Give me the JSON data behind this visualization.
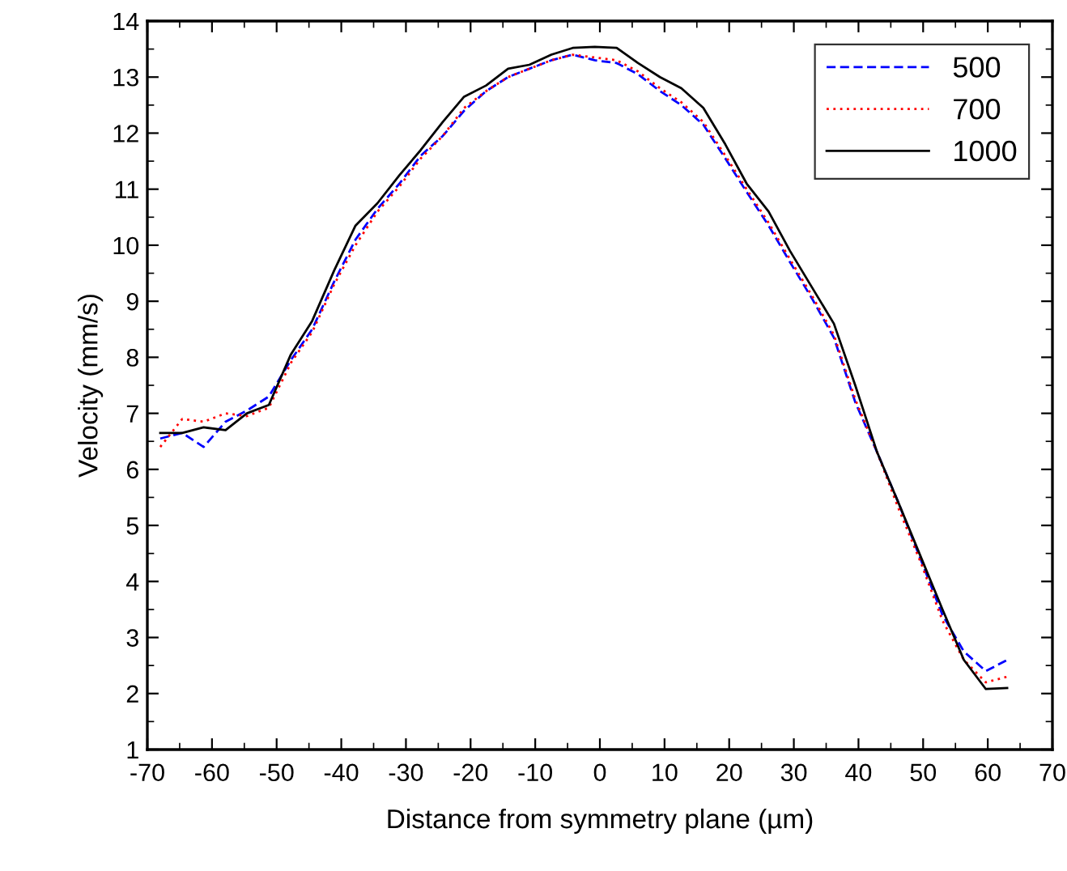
{
  "chart_data": {
    "type": "line",
    "xlabel": "Distance from symmetry plane (µm)",
    "ylabel": "Velocity (mm/s)",
    "x": [
      -68,
      -64.6,
      -61.3,
      -57.9,
      -54.6,
      -51.2,
      -47.8,
      -44.5,
      -41.1,
      -37.8,
      -34.4,
      -31,
      -27.7,
      -24.3,
      -21,
      -17.6,
      -14.2,
      -10.9,
      -7.5,
      -4.2,
      -0.8,
      2.6,
      5.9,
      9.3,
      12.6,
      16,
      19.4,
      22.7,
      26.1,
      29.4,
      32.8,
      36.2,
      39.5,
      42.9,
      46.2,
      49.6,
      53,
      56.3,
      59.7,
      63
    ],
    "series": [
      {
        "name": "500",
        "color": "#0000ff",
        "line_style": "dashed",
        "values": [
          6.55,
          6.65,
          6.4,
          6.85,
          7.05,
          7.3,
          7.95,
          8.5,
          9.35,
          10.1,
          10.65,
          11.1,
          11.6,
          11.95,
          12.4,
          12.75,
          13.0,
          13.15,
          13.3,
          13.4,
          13.3,
          13.25,
          13.05,
          12.75,
          12.5,
          12.15,
          11.55,
          10.95,
          10.35,
          9.7,
          9.05,
          8.35,
          7.2,
          6.3,
          5.4,
          4.4,
          3.4,
          2.75,
          2.4,
          2.6
        ]
      },
      {
        "name": "700",
        "color": "#ff0000",
        "line_style": "dotted",
        "values": [
          6.4,
          6.9,
          6.85,
          7.0,
          6.95,
          7.1,
          7.9,
          8.45,
          9.3,
          10.0,
          10.6,
          11.05,
          11.55,
          11.95,
          12.45,
          12.75,
          13.0,
          13.15,
          13.3,
          13.4,
          13.35,
          13.3,
          13.1,
          12.8,
          12.55,
          12.2,
          11.6,
          11.0,
          10.4,
          9.75,
          9.1,
          8.4,
          7.25,
          6.3,
          5.3,
          4.35,
          3.3,
          2.6,
          2.2,
          2.3
        ]
      },
      {
        "name": "1000",
        "color": "#000000",
        "line_style": "solid",
        "values": [
          6.65,
          6.65,
          6.75,
          6.7,
          7.0,
          7.15,
          8.05,
          8.65,
          9.55,
          10.35,
          10.75,
          11.25,
          11.7,
          12.2,
          12.65,
          12.85,
          13.15,
          13.22,
          13.4,
          13.52,
          13.54,
          13.52,
          13.25,
          13.0,
          12.8,
          12.45,
          11.8,
          11.1,
          10.6,
          9.9,
          9.25,
          8.6,
          7.5,
          6.3,
          5.4,
          4.45,
          3.5,
          2.6,
          2.08,
          2.1
        ]
      }
    ],
    "xlim": [
      -70,
      70
    ],
    "xticks": [
      -70,
      -60,
      -50,
      -40,
      -30,
      -20,
      -10,
      0,
      10,
      20,
      30,
      40,
      50,
      60,
      70
    ],
    "ylim": [
      1,
      14
    ],
    "yticks": [
      1,
      2,
      3,
      4,
      5,
      6,
      7,
      8,
      9,
      10,
      11,
      12,
      13,
      14
    ],
    "grid": false,
    "legend": "top right"
  }
}
